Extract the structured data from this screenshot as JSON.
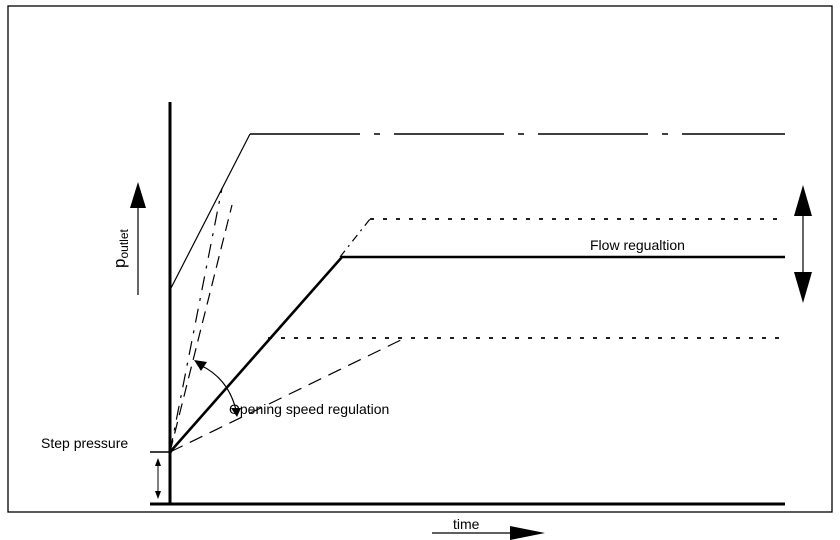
{
  "labels": {
    "y_axis_main": "p",
    "y_axis_sub": "outlet",
    "step_pressure": "Step pressure",
    "flow_regulation": "Flow regualtion",
    "opening_speed_regulation": "Opening speed regulation",
    "time": "time"
  },
  "colors": {
    "ink": "#000000",
    "background": "#ffffff"
  }
}
